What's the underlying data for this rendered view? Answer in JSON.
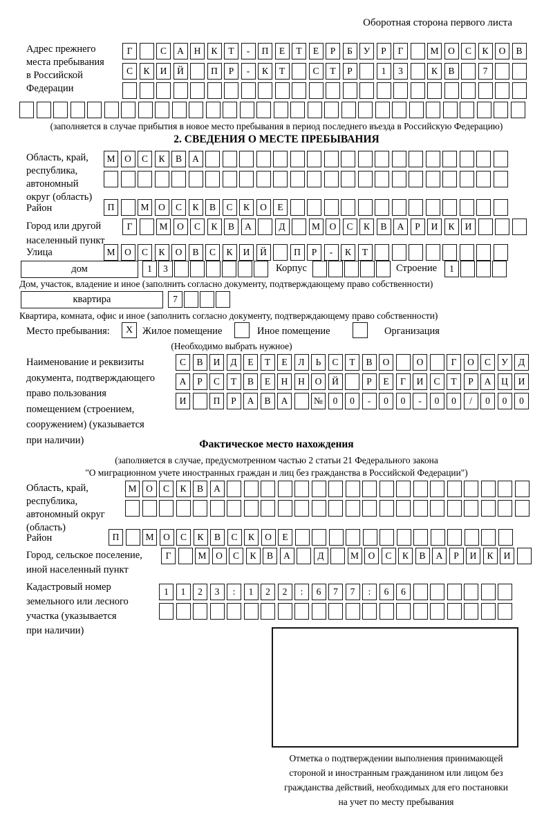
{
  "header_note": "Оборотная сторона первого листа",
  "prev_address": {
    "label_lines": [
      "Адрес прежнего",
      "места пребывания",
      "в Российской",
      "Федерации"
    ],
    "row1": {
      "text": "Г САНКТ-ПЕТЕРБУРГ МОСКОВ",
      "cells": 24
    },
    "row2": {
      "text": "СКИЙ ПР-КТ СТР 13 КВ 7",
      "cells": 24
    },
    "row3": {
      "text": "",
      "cells": 24
    },
    "row4": {
      "text": "",
      "cells": 30
    },
    "note": "(заполняется в случае прибытия в новое место пребывания в период последнего въезда в Российскую Федерацию)"
  },
  "section2": {
    "title": "2. СВЕДЕНИЯ О МЕСТЕ ПРЕБЫВАНИЯ",
    "region": {
      "label_lines": [
        "Область, край,",
        "республика,",
        "автономный",
        "округ (область)"
      ],
      "row1": {
        "text": "МОСКВА",
        "cells": 24
      },
      "row2": {
        "text": "",
        "cells": 24
      }
    },
    "district": {
      "label": "Район",
      "row": {
        "text": "П МОСКВСКОЕ",
        "cells": 24
      }
    },
    "city": {
      "label_lines": [
        "Город или другой",
        "населенный пункт"
      ],
      "row": {
        "text": "Г МОСКВА Д МОСКВАРИКИ",
        "cells": 24
      }
    },
    "street": {
      "label": "Улица",
      "row": {
        "text": "МОСКОВСКИЙ ПР-КТ",
        "cells": 24
      }
    },
    "house": {
      "box_label": "дом",
      "row": {
        "text": "13",
        "cells": 8
      },
      "korpus_label": "Корпус",
      "korpus_row": {
        "text": "",
        "cells": 5
      },
      "stroenie_label": "Строение",
      "stroenie_row": {
        "text": "1",
        "cells": 4
      },
      "note": "Дом, участок, владение и иное (заполнить согласно документу, подтверждающему право собственности)"
    },
    "apartment": {
      "box_label": "квартира",
      "row": {
        "text": "7",
        "cells": 4
      },
      "note": "Квартира, комната, офис и иное (заполнить согласно документу, подтверждающему право собственности)"
    },
    "stay_type": {
      "label": "Место пребывания:",
      "option1": {
        "label": "Жилое помещение",
        "mark": "X"
      },
      "option2": {
        "label": "Иное помещение",
        "mark": ""
      },
      "option3": {
        "label": "Организация",
        "mark": ""
      },
      "note": "(Необходимо выбрать нужное)"
    },
    "document": {
      "label_lines": [
        "Наименование и реквизиты",
        "документа, подтверждающего",
        "право пользования",
        "помещением (строением,",
        "сооружением) (указывается",
        "при наличии)"
      ],
      "row1": {
        "text": "СВИДЕТЕЛЬСТВО О ГОСУД",
        "cells": 21
      },
      "row2": {
        "text": "АРСТВЕННОЙ РЕГИСТРАЦИ",
        "cells": 21
      },
      "row3": {
        "text": "И ПРАВА №00-00-00/000",
        "cells": 21
      }
    }
  },
  "actual": {
    "title": "Фактическое место нахождения",
    "note_line1": "(заполняется в случае, предусмотренном частью 2 статьи 21 Федерального закона",
    "note_line2": "\"О миграционном учете иностранных граждан и лиц без гражданства в Российской Федерации\")",
    "region": {
      "label_lines": [
        "Область, край,",
        "республика,",
        "автономный округ",
        "(область)"
      ],
      "row1": {
        "text": "МОСКВА",
        "cells": 24
      },
      "row2": {
        "text": "",
        "cells": 24
      }
    },
    "district": {
      "label": "Район",
      "row": {
        "text": "П МОСКВСКОЕ",
        "cells": 24
      }
    },
    "city": {
      "label_lines": [
        "Город, сельское поселение,",
        "иной населенный пункт"
      ],
      "row": {
        "text": "Г МОСКВА Д МОСКВАРИКИ",
        "cells": 22
      }
    },
    "cadastral": {
      "label_lines": [
        "Кадастровый номер",
        "земельного или лесного",
        "участка (указывается",
        "при наличии)"
      ],
      "row1": {
        "text": "1123:122:677:66",
        "cells": 21
      },
      "row2": {
        "text": "",
        "cells": 21
      }
    },
    "stamp_note_lines": [
      "Отметка о подтверждении выполнения принимающей",
      "стороной и иностранным гражданином или лицом без",
      "гражданства действий, необходимых для его постановки",
      "на учет по месту пребывания"
    ]
  }
}
